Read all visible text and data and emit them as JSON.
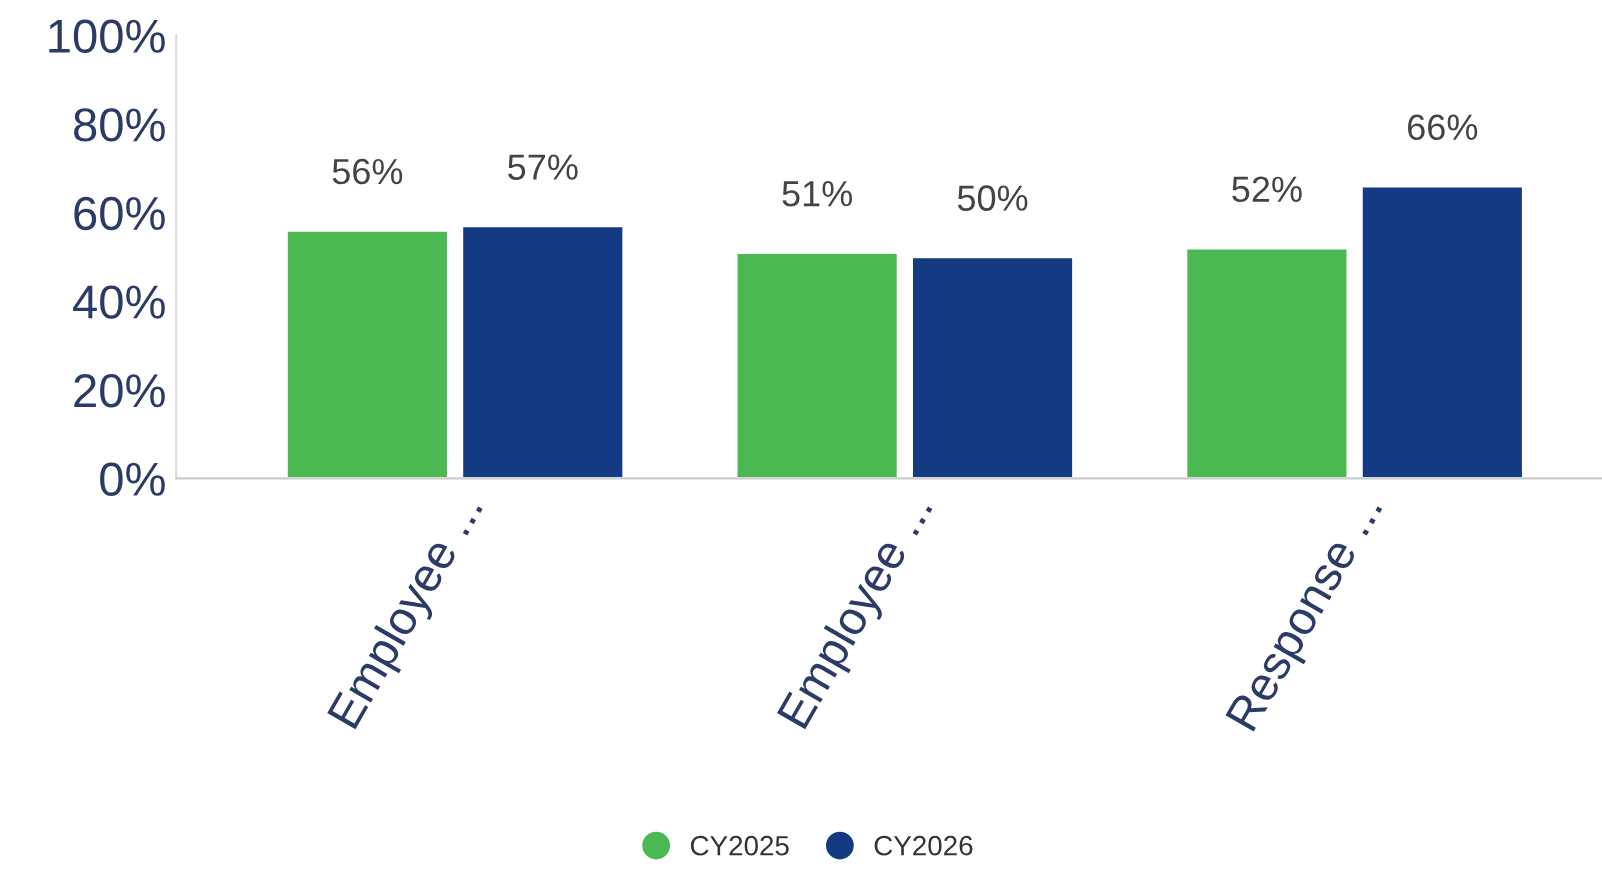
{
  "chart_data": {
    "type": "bar",
    "categories": [
      "Employee ...",
      "Employee ...",
      "Response ..."
    ],
    "series": [
      {
        "name": "CY2025",
        "color": "#4cb851",
        "values": [
          56,
          51,
          52
        ],
        "value_labels": [
          "56%",
          "51%",
          "52%"
        ]
      },
      {
        "name": "CY2026",
        "color": "#133a82",
        "values": [
          57,
          50,
          66
        ],
        "value_labels": [
          "57%",
          "50%",
          "66%"
        ]
      }
    ],
    "ylim": [
      0,
      100
    ],
    "yticks": [
      {
        "value": 0,
        "label": "0%"
      },
      {
        "value": 20,
        "label": "20%"
      },
      {
        "value": 40,
        "label": "40%"
      },
      {
        "value": 60,
        "label": "60%"
      },
      {
        "value": 80,
        "label": "80%"
      },
      {
        "value": 100,
        "label": "100%"
      }
    ],
    "grid": false,
    "legend": "bottom"
  }
}
